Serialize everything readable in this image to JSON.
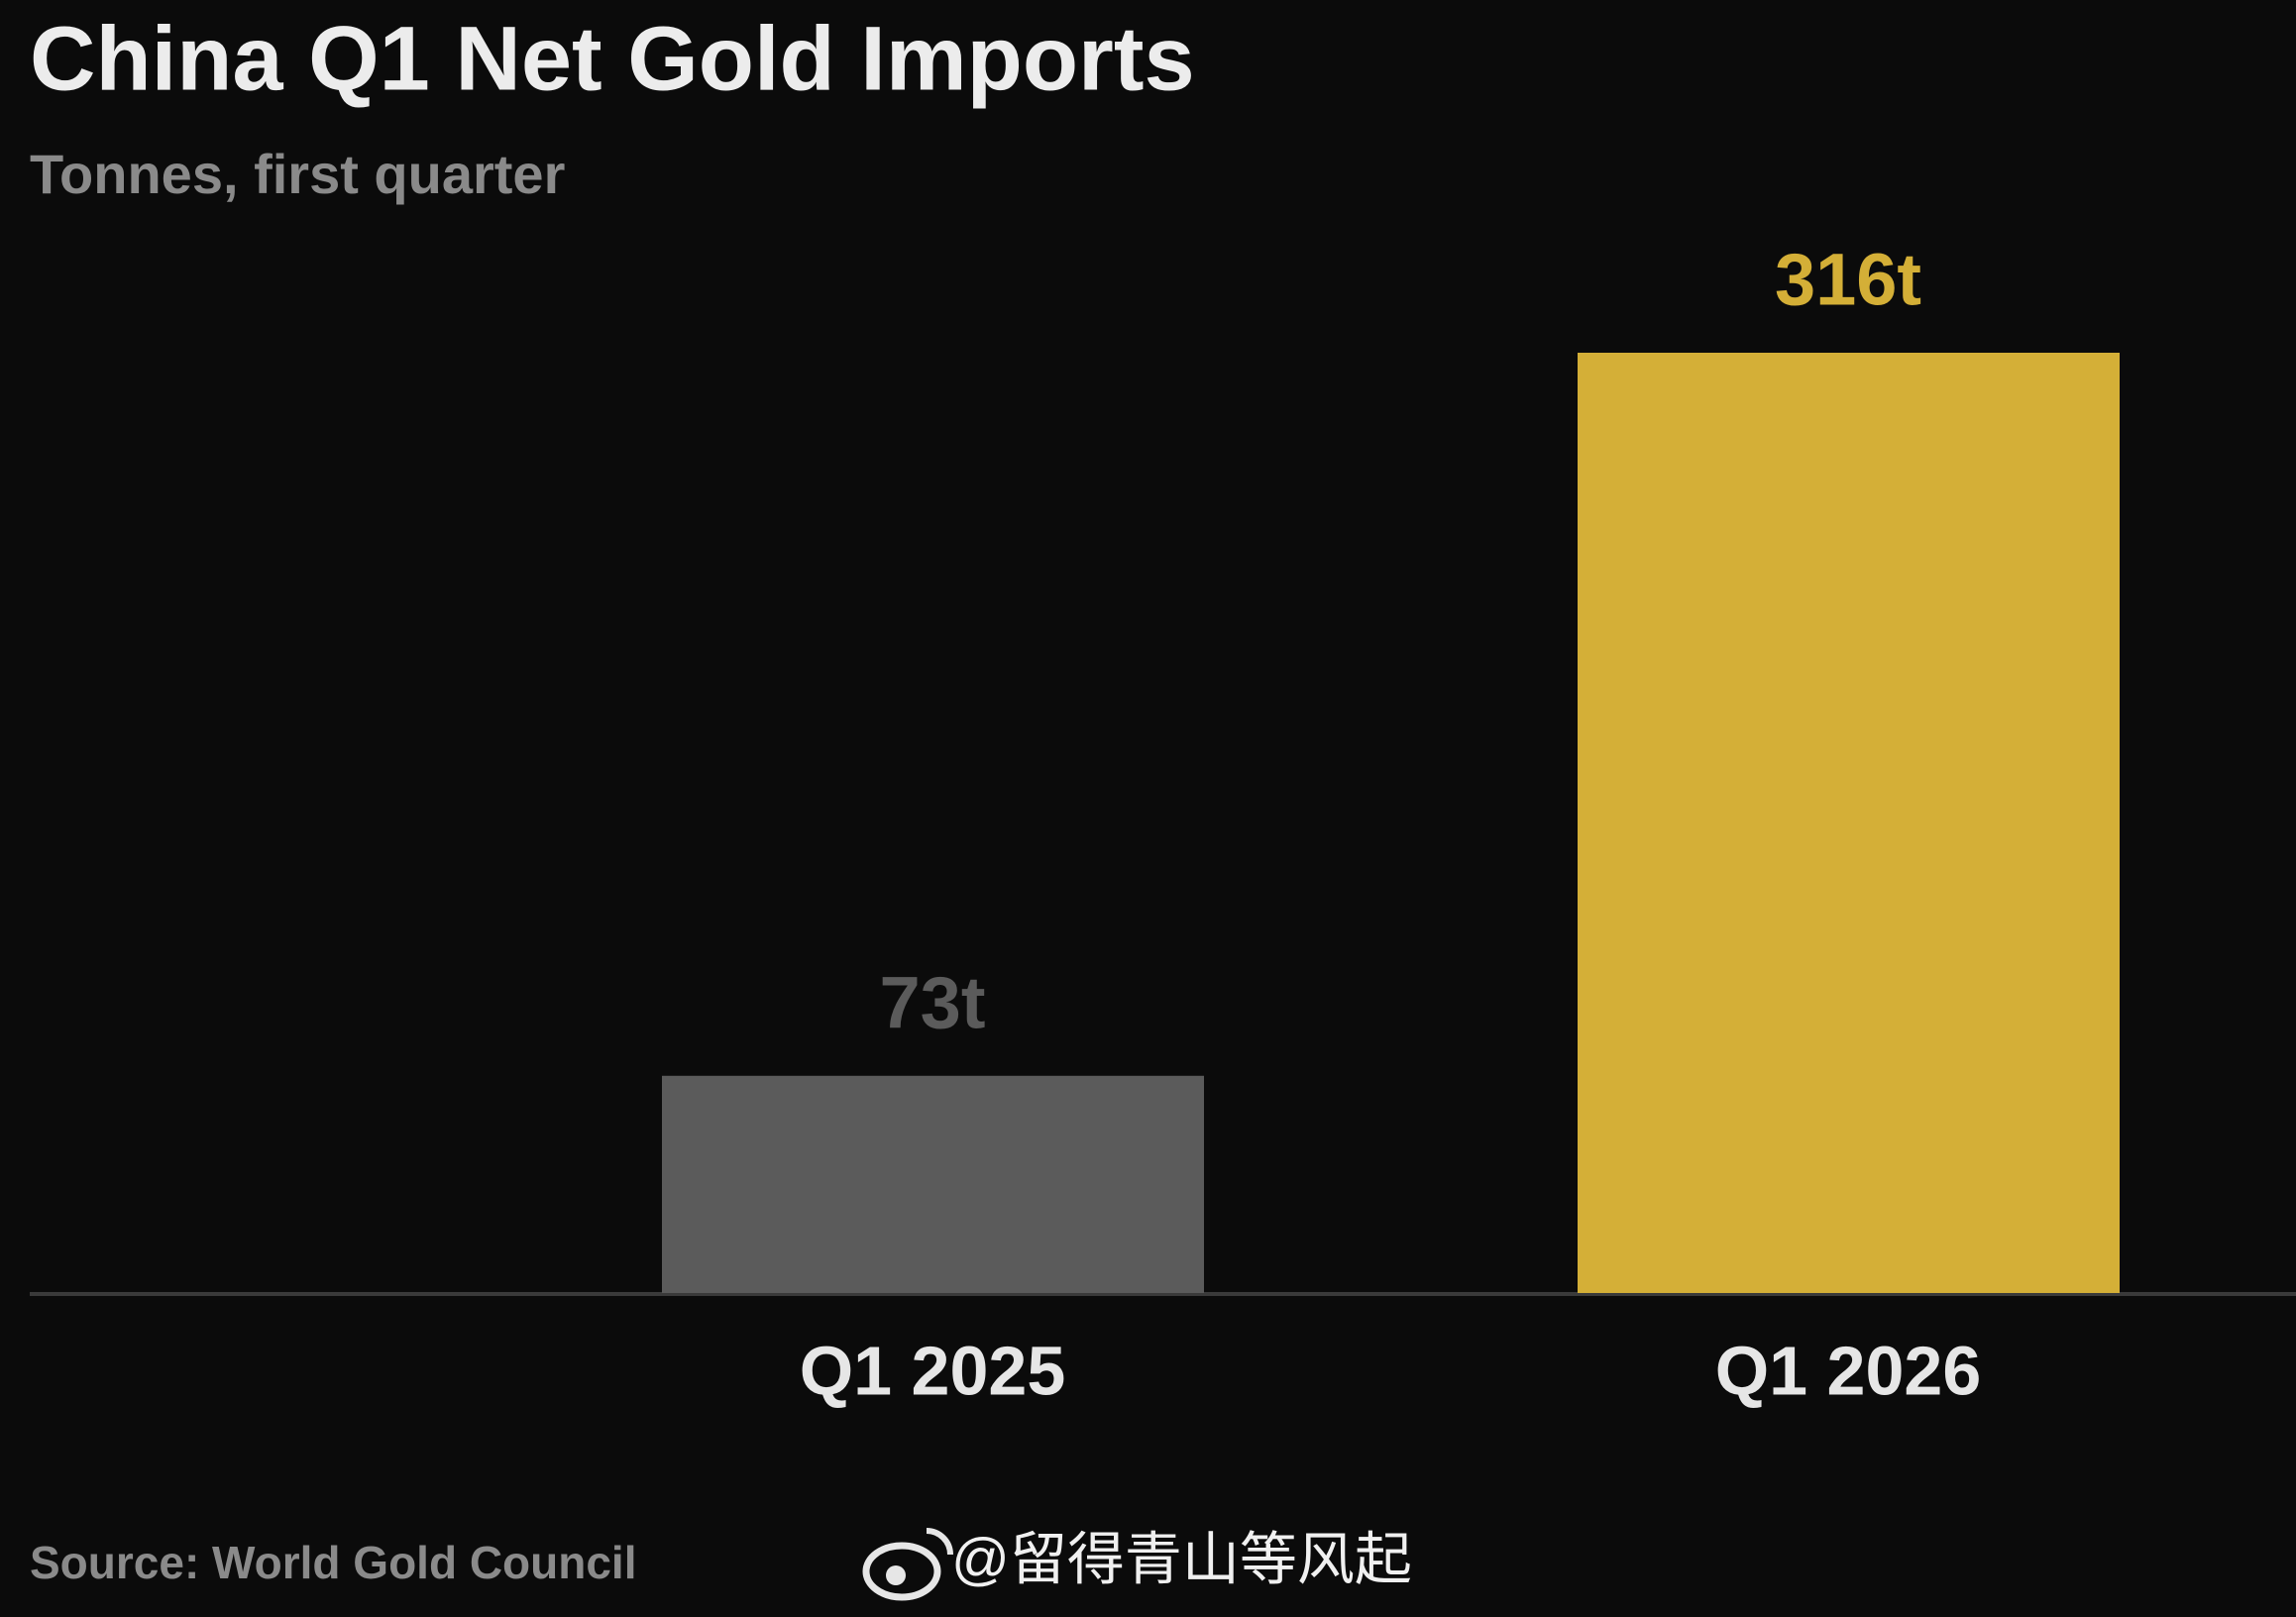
{
  "chart_data": {
    "type": "bar",
    "title": "China Q1 Net Gold Imports",
    "subtitle": "Tonnes, first quarter",
    "categories": [
      "Q1 2025",
      "Q1 2026"
    ],
    "values": [
      73,
      316
    ],
    "value_labels": [
      "73t",
      "316t"
    ],
    "colors": [
      "#5b5b5b",
      "#d4af37"
    ],
    "source": "Source: World Gold Council"
  },
  "watermark": "@留得青山等风起"
}
